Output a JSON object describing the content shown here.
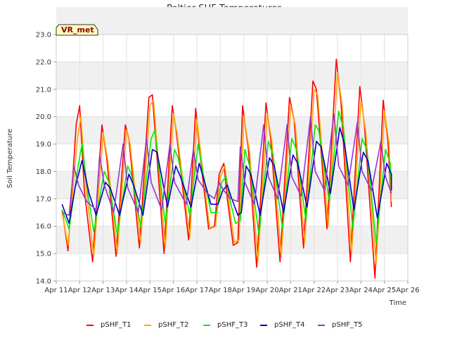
{
  "chart_data": {
    "type": "line",
    "title": "Peltier SHF Temperatures",
    "xlabel": "Time",
    "ylabel": "Soil Temperature",
    "badge": "VR_met",
    "ylim": [
      14.0,
      23.0
    ],
    "xlim": [
      11,
      26
    ],
    "x_ticks": [
      {
        "value": 11,
        "label": "Apr 11"
      },
      {
        "value": 12,
        "label": "Apr 12"
      },
      {
        "value": 13,
        "label": "Apr 13"
      },
      {
        "value": 14,
        "label": "Apr 14"
      },
      {
        "value": 15,
        "label": "Apr 15"
      },
      {
        "value": 16,
        "label": "Apr 16"
      },
      {
        "value": 17,
        "label": "Apr 17"
      },
      {
        "value": 18,
        "label": "Apr 18"
      },
      {
        "value": 19,
        "label": "Apr 19"
      },
      {
        "value": 20,
        "label": "Apr 20"
      },
      {
        "value": 21,
        "label": "Apr 21"
      },
      {
        "value": 22,
        "label": "Apr 22"
      },
      {
        "value": 23,
        "label": "Apr 23"
      },
      {
        "value": 24,
        "label": "Apr 24"
      },
      {
        "value": 25,
        "label": "Apr 25"
      },
      {
        "value": 26,
        "label": "Apr 26"
      }
    ],
    "y_ticks": [
      {
        "value": 14.0,
        "label": "14.0"
      },
      {
        "value": 15.0,
        "label": "15.0"
      },
      {
        "value": 16.0,
        "label": "16.0"
      },
      {
        "value": 17.0,
        "label": "17.0"
      },
      {
        "value": 18.0,
        "label": "18.0"
      },
      {
        "value": 19.0,
        "label": "19.0"
      },
      {
        "value": 20.0,
        "label": "20.0"
      },
      {
        "value": 21.0,
        "label": "21.0"
      },
      {
        "value": 22.0,
        "label": "22.0"
      },
      {
        "value": 23.0,
        "label": "23.0"
      }
    ],
    "grid": true,
    "legend_position": "bottom",
    "series": [
      {
        "name": "pSHF_T1",
        "color": "#ff0000",
        "points": [
          [
            11.25,
            16.6
          ],
          [
            11.5,
            15.1
          ],
          [
            11.85,
            19.7
          ],
          [
            12.0,
            20.4
          ],
          [
            12.2,
            17.3
          ],
          [
            12.55,
            14.7
          ],
          [
            12.95,
            19.7
          ],
          [
            13.15,
            18.5
          ],
          [
            13.55,
            14.9
          ],
          [
            13.95,
            19.7
          ],
          [
            14.1,
            19.2
          ],
          [
            14.55,
            15.2
          ],
          [
            14.95,
            20.7
          ],
          [
            15.1,
            20.8
          ],
          [
            15.6,
            15.0
          ],
          [
            15.95,
            20.4
          ],
          [
            16.1,
            19.6
          ],
          [
            16.65,
            15.5
          ],
          [
            16.95,
            20.3
          ],
          [
            17.15,
            18.5
          ],
          [
            17.5,
            15.9
          ],
          [
            17.75,
            16.0
          ],
          [
            17.95,
            17.9
          ],
          [
            18.15,
            18.3
          ],
          [
            18.3,
            17.0
          ],
          [
            18.55,
            15.3
          ],
          [
            18.75,
            15.4
          ],
          [
            18.95,
            20.4
          ],
          [
            19.2,
            18.8
          ],
          [
            19.55,
            14.5
          ],
          [
            19.95,
            20.5
          ],
          [
            20.15,
            19.2
          ],
          [
            20.55,
            14.7
          ],
          [
            20.95,
            20.7
          ],
          [
            21.15,
            19.9
          ],
          [
            21.55,
            15.2
          ],
          [
            21.95,
            21.3
          ],
          [
            22.1,
            21.0
          ],
          [
            22.55,
            15.9
          ],
          [
            22.95,
            22.1
          ],
          [
            23.15,
            20.5
          ],
          [
            23.55,
            14.7
          ],
          [
            23.95,
            21.1
          ],
          [
            24.15,
            19.7
          ],
          [
            24.6,
            14.1
          ],
          [
            24.95,
            20.6
          ],
          [
            25.15,
            19.1
          ],
          [
            25.3,
            16.7
          ]
        ]
      },
      {
        "name": "pSHF_T2",
        "color": "#ffa500",
        "points": [
          [
            11.25,
            16.5
          ],
          [
            11.5,
            15.3
          ],
          [
            11.9,
            19.2
          ],
          [
            12.05,
            20.0
          ],
          [
            12.25,
            17.6
          ],
          [
            12.6,
            14.9
          ],
          [
            13.0,
            19.4
          ],
          [
            13.2,
            18.4
          ],
          [
            13.6,
            15.0
          ],
          [
            14.0,
            19.5
          ],
          [
            14.15,
            19.0
          ],
          [
            14.6,
            15.4
          ],
          [
            15.0,
            20.4
          ],
          [
            15.15,
            20.6
          ],
          [
            15.65,
            15.2
          ],
          [
            16.0,
            20.1
          ],
          [
            16.15,
            19.4
          ],
          [
            16.7,
            15.6
          ],
          [
            17.0,
            19.9
          ],
          [
            17.2,
            18.4
          ],
          [
            17.55,
            15.9
          ],
          [
            17.8,
            16.0
          ],
          [
            18.0,
            17.8
          ],
          [
            18.2,
            18.2
          ],
          [
            18.35,
            17.0
          ],
          [
            18.6,
            15.4
          ],
          [
            18.8,
            15.5
          ],
          [
            19.0,
            20.0
          ],
          [
            19.25,
            18.7
          ],
          [
            19.6,
            14.7
          ],
          [
            20.0,
            20.1
          ],
          [
            20.2,
            19.1
          ],
          [
            20.6,
            14.9
          ],
          [
            21.0,
            20.4
          ],
          [
            21.2,
            19.7
          ],
          [
            21.6,
            15.4
          ],
          [
            22.0,
            21.0
          ],
          [
            22.15,
            20.8
          ],
          [
            22.6,
            16.0
          ],
          [
            23.0,
            21.6
          ],
          [
            23.2,
            20.4
          ],
          [
            23.6,
            15.0
          ],
          [
            24.0,
            20.6
          ],
          [
            24.2,
            19.5
          ],
          [
            24.65,
            14.6
          ],
          [
            25.0,
            20.2
          ],
          [
            25.2,
            19.0
          ],
          [
            25.3,
            16.9
          ]
        ]
      },
      {
        "name": "pSHF_T3",
        "color": "#00ee00",
        "points": [
          [
            11.25,
            16.6
          ],
          [
            11.55,
            15.9
          ],
          [
            11.95,
            18.3
          ],
          [
            12.1,
            19.0
          ],
          [
            12.35,
            17.2
          ],
          [
            12.6,
            15.8
          ],
          [
            13.05,
            18.0
          ],
          [
            13.25,
            17.6
          ],
          [
            13.6,
            15.7
          ],
          [
            14.05,
            18.2
          ],
          [
            14.2,
            17.9
          ],
          [
            14.6,
            16.0
          ],
          [
            15.05,
            19.2
          ],
          [
            15.2,
            19.5
          ],
          [
            15.65,
            16.1
          ],
          [
            16.05,
            18.8
          ],
          [
            16.2,
            18.5
          ],
          [
            16.7,
            16.4
          ],
          [
            17.05,
            19.0
          ],
          [
            17.25,
            18.0
          ],
          [
            17.6,
            16.5
          ],
          [
            17.85,
            16.5
          ],
          [
            18.05,
            17.6
          ],
          [
            18.25,
            17.8
          ],
          [
            18.4,
            17.0
          ],
          [
            18.65,
            16.1
          ],
          [
            18.85,
            16.2
          ],
          [
            19.05,
            18.8
          ],
          [
            19.25,
            18.2
          ],
          [
            19.65,
            15.7
          ],
          [
            20.05,
            19.1
          ],
          [
            20.25,
            18.6
          ],
          [
            20.65,
            15.9
          ],
          [
            21.05,
            19.2
          ],
          [
            21.25,
            18.8
          ],
          [
            21.65,
            16.2
          ],
          [
            22.05,
            19.7
          ],
          [
            22.2,
            19.5
          ],
          [
            22.65,
            16.9
          ],
          [
            23.05,
            20.2
          ],
          [
            23.25,
            19.6
          ],
          [
            23.65,
            15.9
          ],
          [
            24.05,
            19.2
          ],
          [
            24.25,
            18.8
          ],
          [
            24.65,
            15.4
          ],
          [
            25.05,
            18.8
          ],
          [
            25.25,
            18.3
          ],
          [
            25.3,
            17.4
          ]
        ]
      },
      {
        "name": "pSHF_T4",
        "color": "#0000cc",
        "points": [
          [
            11.25,
            16.8
          ],
          [
            11.55,
            16.1
          ],
          [
            11.8,
            17.4
          ],
          [
            12.1,
            18.4
          ],
          [
            12.4,
            17.2
          ],
          [
            12.7,
            16.4
          ],
          [
            13.1,
            17.6
          ],
          [
            13.3,
            17.4
          ],
          [
            13.7,
            16.4
          ],
          [
            14.1,
            17.9
          ],
          [
            14.3,
            17.5
          ],
          [
            14.7,
            16.4
          ],
          [
            15.1,
            18.8
          ],
          [
            15.3,
            18.7
          ],
          [
            15.75,
            16.7
          ],
          [
            16.1,
            18.2
          ],
          [
            16.3,
            17.8
          ],
          [
            16.75,
            16.7
          ],
          [
            17.1,
            18.3
          ],
          [
            17.3,
            17.7
          ],
          [
            17.6,
            16.8
          ],
          [
            17.9,
            16.8
          ],
          [
            18.1,
            17.3
          ],
          [
            18.3,
            17.5
          ],
          [
            18.45,
            17.1
          ],
          [
            18.75,
            16.4
          ],
          [
            18.9,
            16.5
          ],
          [
            19.1,
            18.2
          ],
          [
            19.3,
            17.9
          ],
          [
            19.7,
            16.4
          ],
          [
            20.1,
            18.5
          ],
          [
            20.3,
            18.2
          ],
          [
            20.7,
            16.5
          ],
          [
            21.1,
            18.6
          ],
          [
            21.3,
            18.3
          ],
          [
            21.7,
            16.7
          ],
          [
            22.1,
            19.1
          ],
          [
            22.3,
            18.9
          ],
          [
            22.7,
            17.2
          ],
          [
            23.1,
            19.6
          ],
          [
            23.3,
            19.0
          ],
          [
            23.7,
            16.6
          ],
          [
            24.1,
            18.7
          ],
          [
            24.3,
            18.4
          ],
          [
            24.7,
            16.3
          ],
          [
            25.1,
            18.3
          ],
          [
            25.3,
            17.9
          ],
          [
            25.3,
            17.3
          ]
        ]
      },
      {
        "name": "pSHF_T5",
        "color": "#9933cc",
        "points": [
          [
            11.25,
            16.5
          ],
          [
            11.55,
            16.4
          ],
          [
            11.75,
            18.2
          ],
          [
            11.95,
            17.5
          ],
          [
            12.3,
            16.9
          ],
          [
            12.7,
            16.6
          ],
          [
            12.85,
            18.6
          ],
          [
            13.05,
            17.5
          ],
          [
            13.45,
            16.5
          ],
          [
            13.85,
            19.0
          ],
          [
            14.05,
            17.4
          ],
          [
            14.5,
            16.5
          ],
          [
            14.85,
            19.2
          ],
          [
            15.05,
            17.6
          ],
          [
            15.5,
            16.6
          ],
          [
            15.85,
            19.0
          ],
          [
            16.05,
            17.6
          ],
          [
            16.55,
            16.8
          ],
          [
            16.85,
            18.8
          ],
          [
            17.05,
            17.7
          ],
          [
            17.45,
            17.2
          ],
          [
            17.75,
            17.0
          ],
          [
            17.95,
            17.6
          ],
          [
            18.15,
            17.3
          ],
          [
            18.45,
            17.0
          ],
          [
            18.75,
            16.9
          ],
          [
            18.85,
            18.9
          ],
          [
            19.05,
            17.6
          ],
          [
            19.45,
            16.8
          ],
          [
            19.85,
            19.7
          ],
          [
            20.05,
            17.8
          ],
          [
            20.45,
            17.0
          ],
          [
            20.85,
            19.7
          ],
          [
            21.05,
            17.8
          ],
          [
            21.45,
            17.1
          ],
          [
            21.85,
            20.0
          ],
          [
            22.05,
            18.0
          ],
          [
            22.45,
            17.3
          ],
          [
            22.85,
            20.1
          ],
          [
            23.05,
            18.2
          ],
          [
            23.45,
            17.5
          ],
          [
            23.85,
            19.8
          ],
          [
            24.05,
            18.0
          ],
          [
            24.45,
            17.3
          ],
          [
            24.85,
            19.1
          ],
          [
            25.05,
            17.8
          ],
          [
            25.3,
            17.2
          ]
        ]
      }
    ]
  }
}
